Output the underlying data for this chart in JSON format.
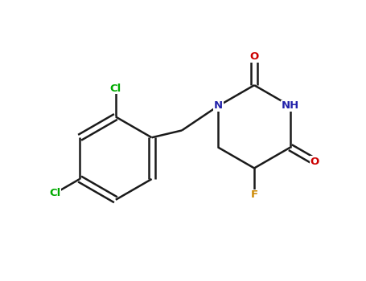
{
  "background_color": "#ffffff",
  "bond_color": "#1a1a1a",
  "atom_colors": {
    "N": "#2222aa",
    "O": "#cc0000",
    "Cl": "#00aa00",
    "F": "#cc8800",
    "C": "#1a1a1a"
  },
  "figsize": [
    4.55,
    3.5
  ],
  "dpi": 100
}
